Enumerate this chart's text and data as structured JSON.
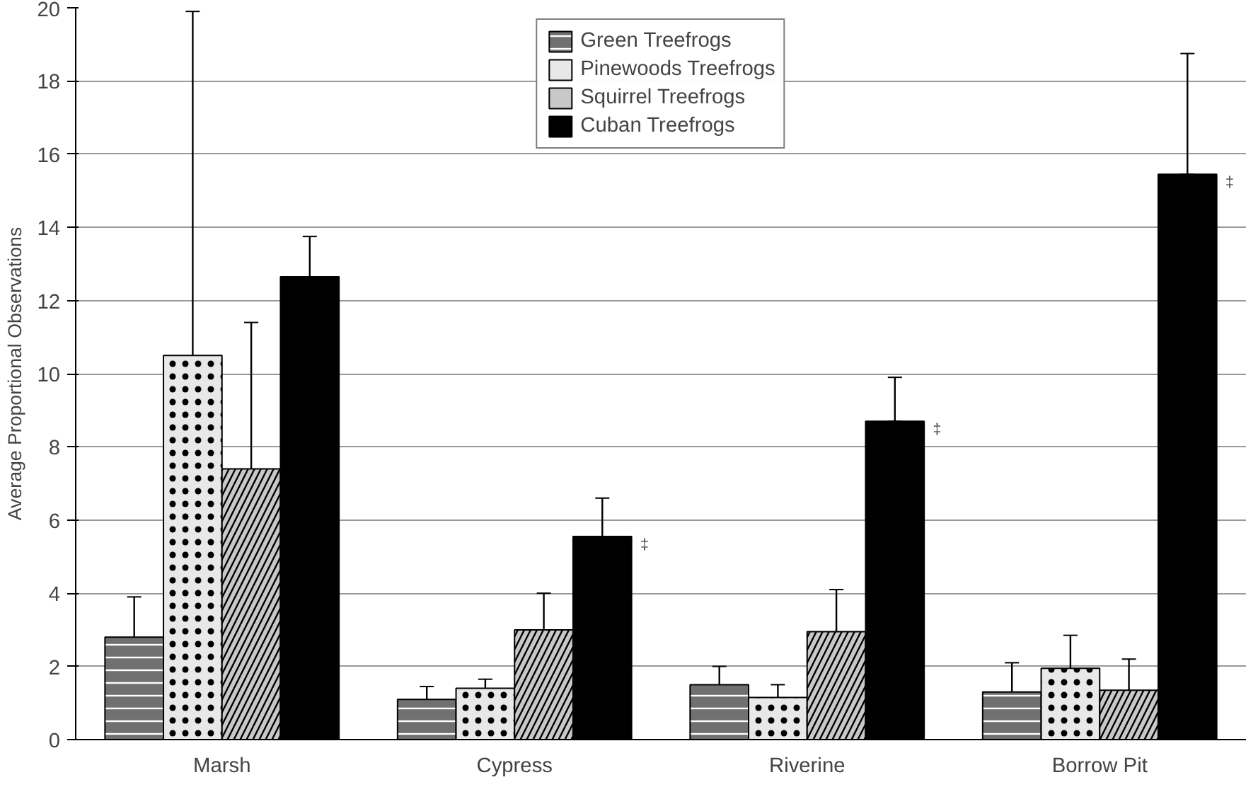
{
  "chart_data": {
    "type": "bar",
    "ylabel": "Average Proportional Observations",
    "categories": [
      "Marsh",
      "Cypress",
      "Riverine",
      "Borrow Pit"
    ],
    "ylim": [
      0,
      20
    ],
    "yticks": [
      0,
      2,
      4,
      6,
      8,
      10,
      12,
      14,
      16,
      18,
      20
    ],
    "grid": "y",
    "legend": "top",
    "series": [
      {
        "name": "Green Treefrogs",
        "color": "#707070",
        "values": [
          2.8,
          1.1,
          1.5,
          1.3
        ],
        "errors": [
          [
            1.7,
            3.9
          ],
          [
            0.75,
            1.45
          ],
          [
            1.0,
            2.0
          ],
          [
            0.45,
            2.1
          ]
        ]
      },
      {
        "name": "Pinewoods Treefrogs",
        "color": "#e8e8e8",
        "values": [
          10.5,
          1.4,
          1.15,
          1.95
        ],
        "errors": [
          [
            1.1,
            19.9
          ],
          [
            1.15,
            1.65
          ],
          [
            0.8,
            1.5
          ],
          [
            1.0,
            2.85
          ]
        ]
      },
      {
        "name": "Squirrel Treefrogs",
        "color": "#c8c8c8",
        "values": [
          7.4,
          3.0,
          2.95,
          1.35
        ],
        "errors": [
          [
            3.4,
            11.4
          ],
          [
            2.0,
            4.0
          ],
          [
            1.8,
            4.1
          ],
          [
            0.5,
            2.2
          ]
        ]
      },
      {
        "name": "Cuban Treefrogs",
        "color": "#000000",
        "values": [
          12.65,
          5.55,
          8.7,
          15.45
        ],
        "errors": [
          [
            12.65,
            13.75
          ],
          [
            5.55,
            6.6
          ],
          [
            8.7,
            9.9
          ],
          [
            15.45,
            18.75
          ]
        ]
      }
    ],
    "annotations": [
      "‡",
      "‡",
      "‡"
    ]
  }
}
